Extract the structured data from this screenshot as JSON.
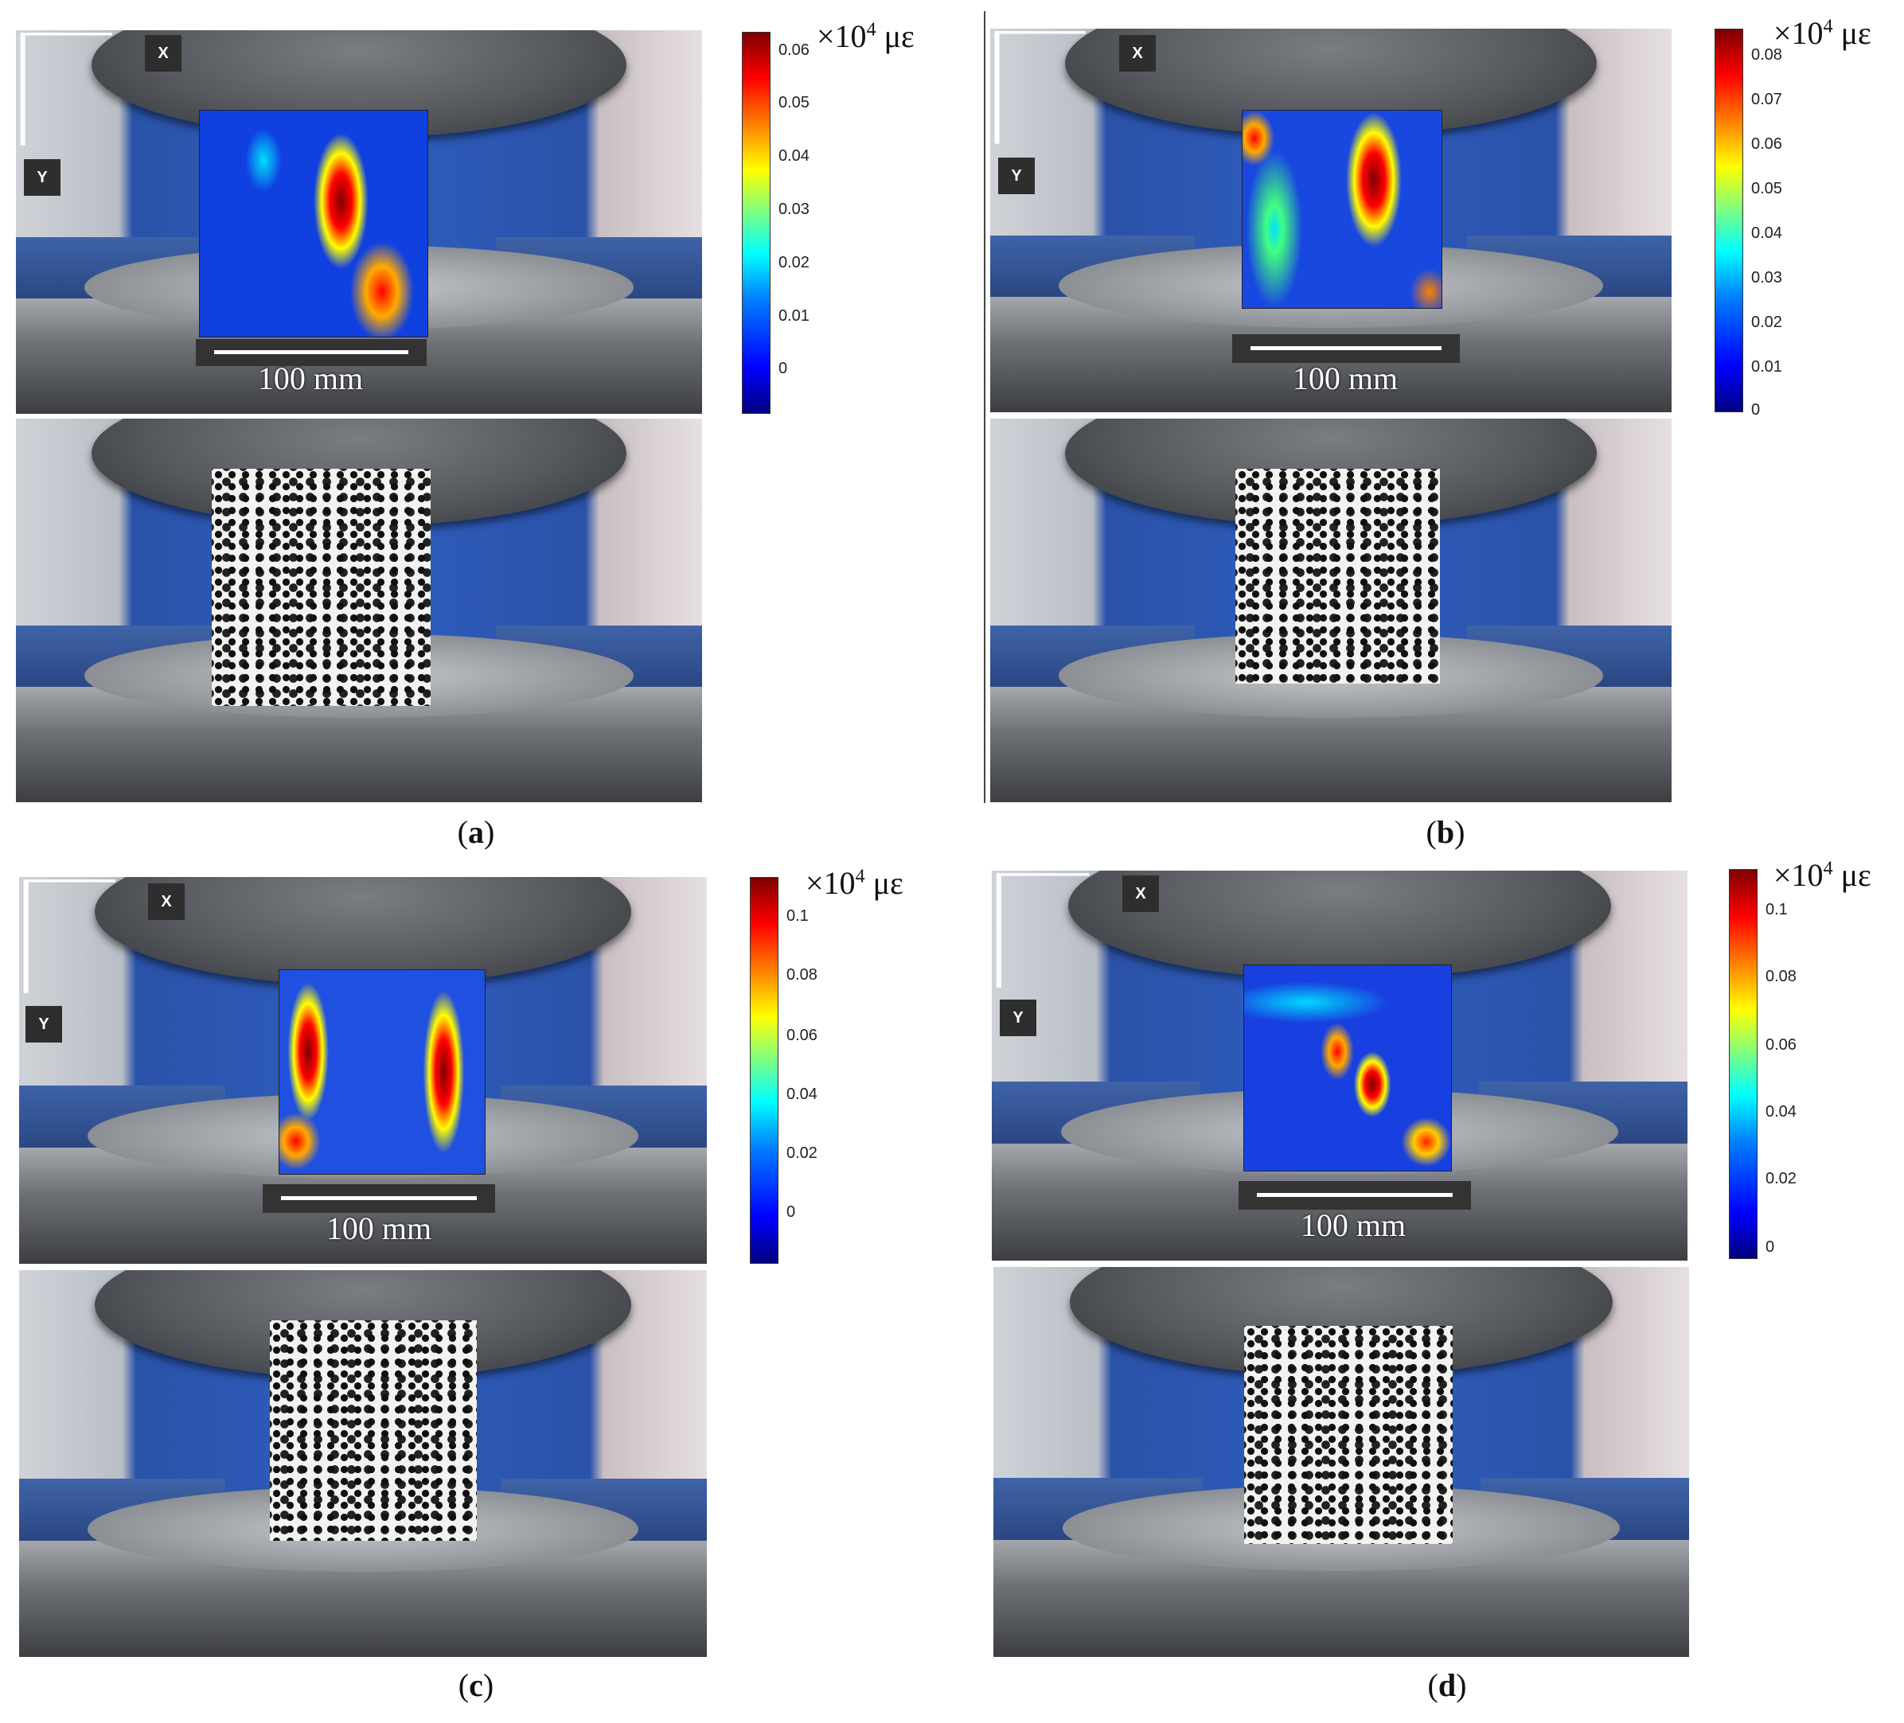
{
  "figure": {
    "panels": [
      {
        "id": "a",
        "caption_letter": "a",
        "axis_x": "X",
        "axis_y": "Y",
        "scale_label": "100 mm",
        "colorbar": {
          "unit_base": "×10",
          "unit_exp": "4",
          "unit_suffix": " με",
          "ticks": [
            "0.06",
            "0.05",
            "0.04",
            "0.03",
            "0.02",
            "0.01",
            "0"
          ]
        }
      },
      {
        "id": "b",
        "caption_letter": "b",
        "axis_x": "X",
        "axis_y": "Y",
        "scale_label": "100 mm",
        "colorbar": {
          "unit_base": "×10",
          "unit_exp": "4",
          "unit_suffix": " με",
          "ticks": [
            "0.08",
            "0.07",
            "0.06",
            "0.05",
            "0.04",
            "0.03",
            "0.02",
            "0.01",
            "0"
          ]
        }
      },
      {
        "id": "c",
        "caption_letter": "c",
        "axis_x": "X",
        "axis_y": "Y",
        "scale_label": "100 mm",
        "colorbar": {
          "unit_base": "×10",
          "unit_exp": "4",
          "unit_suffix": " με",
          "ticks": [
            "0.1",
            "0.08",
            "0.06",
            "0.04",
            "0.02",
            "0"
          ]
        }
      },
      {
        "id": "d",
        "caption_letter": "d",
        "axis_x": "X",
        "axis_y": "Y",
        "scale_label": "100 mm",
        "colorbar": {
          "unit_base": "×10",
          "unit_exp": "4",
          "unit_suffix": " με",
          "ticks": [
            "0.1",
            "0.08",
            "0.06",
            "0.04",
            "0.02",
            "0"
          ]
        }
      }
    ]
  }
}
